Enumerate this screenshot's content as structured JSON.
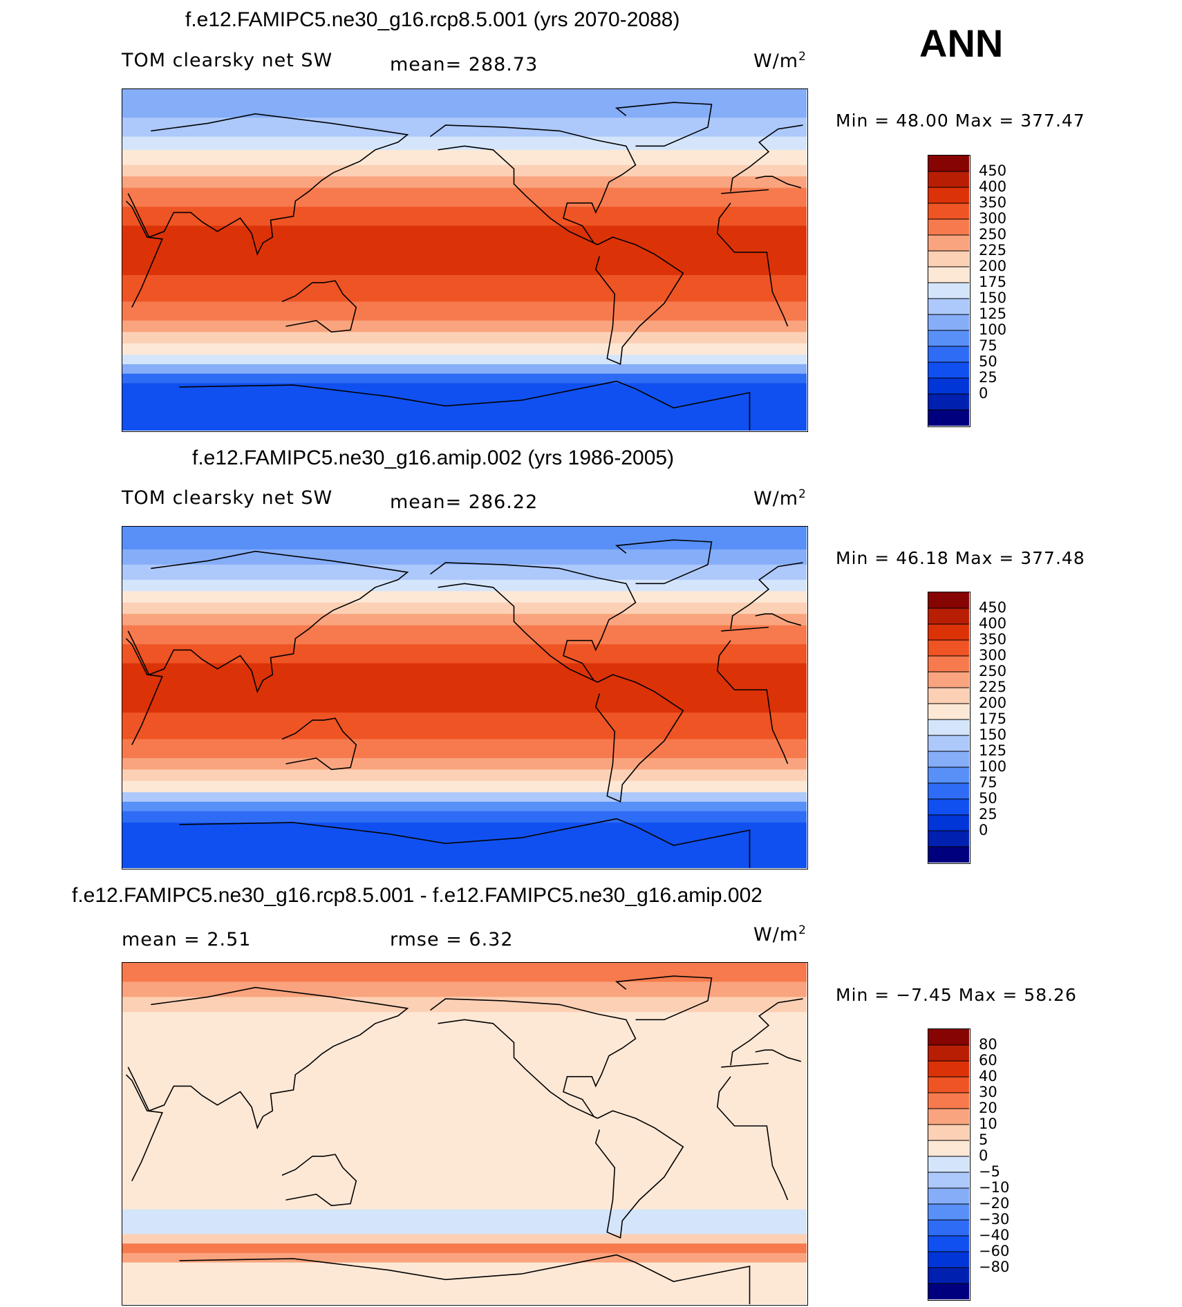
{
  "season": "ANN",
  "colors": {
    "abs_scale": [
      "#00007f",
      "#0020b0",
      "#0036d8",
      "#1050f0",
      "#2f6cf5",
      "#5890f7",
      "#85adf8",
      "#adc8fa",
      "#d4e5fb",
      "#fde8d6",
      "#fcd0b5",
      "#f9a47e",
      "#f67a4d",
      "#ee5424",
      "#dc3208",
      "#b81e04",
      "#860402"
    ],
    "diff_scale": [
      "#00007f",
      "#0020b0",
      "#0036d8",
      "#1050f0",
      "#2f6cf5",
      "#5890f7",
      "#85adf8",
      "#adc8fa",
      "#d4e5fb",
      "#fde8d6",
      "#fcd0b5",
      "#f9a47e",
      "#f67a4d",
      "#ee5424",
      "#dc3208",
      "#b81e04",
      "#860402"
    ]
  },
  "panels": [
    {
      "title": "f.e12.FAMIPC5.ne30_g16.rcp8.5.001 (yrs 2070-2088)",
      "left_label": "TOM clearsky net SW",
      "center_label": "mean= 288.73",
      "units": "W/m",
      "units_sup": "2",
      "min_max": "Min =   48.00 Max = 377.47",
      "colorbar_labels": [
        "450",
        "400",
        "350",
        "300",
        "250",
        "225",
        "200",
        "175",
        "150",
        "125",
        "100",
        "75",
        "50",
        "25",
        "0"
      ],
      "bands": [
        {
          "lat0": 90,
          "lat1": 75,
          "color": "#85adf8"
        },
        {
          "lat0": 75,
          "lat1": 65,
          "color": "#adc8fa"
        },
        {
          "lat0": 65,
          "lat1": 58,
          "color": "#d4e5fb"
        },
        {
          "lat0": 58,
          "lat1": 50,
          "color": "#fde8d6"
        },
        {
          "lat0": 50,
          "lat1": 44,
          "color": "#fcd0b5"
        },
        {
          "lat0": 44,
          "lat1": 38,
          "color": "#f9a47e"
        },
        {
          "lat0": 38,
          "lat1": 28,
          "color": "#f67a4d"
        },
        {
          "lat0": 28,
          "lat1": 18,
          "color": "#ee5424"
        },
        {
          "lat0": 18,
          "lat1": -8,
          "color": "#dc3208"
        },
        {
          "lat0": -8,
          "lat1": -22,
          "color": "#ee5424"
        },
        {
          "lat0": -22,
          "lat1": -32,
          "color": "#f67a4d"
        },
        {
          "lat0": -32,
          "lat1": -38,
          "color": "#f9a47e"
        },
        {
          "lat0": -38,
          "lat1": -44,
          "color": "#fcd0b5"
        },
        {
          "lat0": -44,
          "lat1": -50,
          "color": "#fde8d6"
        },
        {
          "lat0": -50,
          "lat1": -55,
          "color": "#d4e5fb"
        },
        {
          "lat0": -55,
          "lat1": -60,
          "color": "#85adf8"
        },
        {
          "lat0": -60,
          "lat1": -65,
          "color": "#2f6cf5"
        },
        {
          "lat0": -65,
          "lat1": -90,
          "color": "#1050f0"
        }
      ]
    },
    {
      "title": "f.e12.FAMIPC5.ne30_g16.amip.002 (yrs 1986-2005)",
      "left_label": "TOM clearsky net SW",
      "center_label": "mean= 286.22",
      "units": "W/m",
      "units_sup": "2",
      "min_max": "Min =   46.18 Max = 377.48",
      "colorbar_labels": [
        "450",
        "400",
        "350",
        "300",
        "250",
        "225",
        "200",
        "175",
        "150",
        "125",
        "100",
        "75",
        "50",
        "25",
        "0"
      ],
      "bands": [
        {
          "lat0": 90,
          "lat1": 78,
          "color": "#5890f7"
        },
        {
          "lat0": 78,
          "lat1": 70,
          "color": "#85adf8"
        },
        {
          "lat0": 70,
          "lat1": 62,
          "color": "#adc8fa"
        },
        {
          "lat0": 62,
          "lat1": 56,
          "color": "#d4e5fb"
        },
        {
          "lat0": 56,
          "lat1": 50,
          "color": "#fde8d6"
        },
        {
          "lat0": 50,
          "lat1": 44,
          "color": "#fcd0b5"
        },
        {
          "lat0": 44,
          "lat1": 38,
          "color": "#f9a47e"
        },
        {
          "lat0": 38,
          "lat1": 28,
          "color": "#f67a4d"
        },
        {
          "lat0": 28,
          "lat1": 18,
          "color": "#ee5424"
        },
        {
          "lat0": 18,
          "lat1": -8,
          "color": "#dc3208"
        },
        {
          "lat0": -8,
          "lat1": -22,
          "color": "#ee5424"
        },
        {
          "lat0": -22,
          "lat1": -32,
          "color": "#f67a4d"
        },
        {
          "lat0": -32,
          "lat1": -38,
          "color": "#f9a47e"
        },
        {
          "lat0": -38,
          "lat1": -44,
          "color": "#fcd0b5"
        },
        {
          "lat0": -44,
          "lat1": -50,
          "color": "#fde8d6"
        },
        {
          "lat0": -50,
          "lat1": -55,
          "color": "#adc8fa"
        },
        {
          "lat0": -55,
          "lat1": -60,
          "color": "#5890f7"
        },
        {
          "lat0": -60,
          "lat1": -66,
          "color": "#2f6cf5"
        },
        {
          "lat0": -66,
          "lat1": -90,
          "color": "#1050f0"
        }
      ]
    },
    {
      "title": "f.e12.FAMIPC5.ne30_g16.rcp8.5.001 - f.e12.FAMIPC5.ne30_g16.amip.002",
      "left_label": "mean =    2.51",
      "center_label": "rmse =    6.32",
      "units": "W/m",
      "units_sup": "2",
      "min_max": "Min =  −7.45 Max =   58.26",
      "colorbar_labels": [
        "80",
        "60",
        "40",
        "30",
        "20",
        "10",
        "5",
        "0",
        "−5",
        "−10",
        "−20",
        "−30",
        "−40",
        "−60",
        "−80"
      ],
      "bands": [
        {
          "lat0": 90,
          "lat1": 80,
          "color": "#f67a4d"
        },
        {
          "lat0": 80,
          "lat1": 72,
          "color": "#f9a47e"
        },
        {
          "lat0": 72,
          "lat1": 64,
          "color": "#fcd0b5"
        },
        {
          "lat0": 64,
          "lat1": 42,
          "color": "#fde8d6"
        },
        {
          "lat0": 42,
          "lat1": -40,
          "color": "#fde8d6"
        },
        {
          "lat0": -40,
          "lat1": -53,
          "color": "#d4e5fb"
        },
        {
          "lat0": -53,
          "lat1": -58,
          "color": "#fcd0b5"
        },
        {
          "lat0": -58,
          "lat1": -63,
          "color": "#f67a4d"
        },
        {
          "lat0": -63,
          "lat1": -68,
          "color": "#f9a47e"
        },
        {
          "lat0": -68,
          "lat1": -90,
          "color": "#fde8d6"
        }
      ]
    }
  ]
}
